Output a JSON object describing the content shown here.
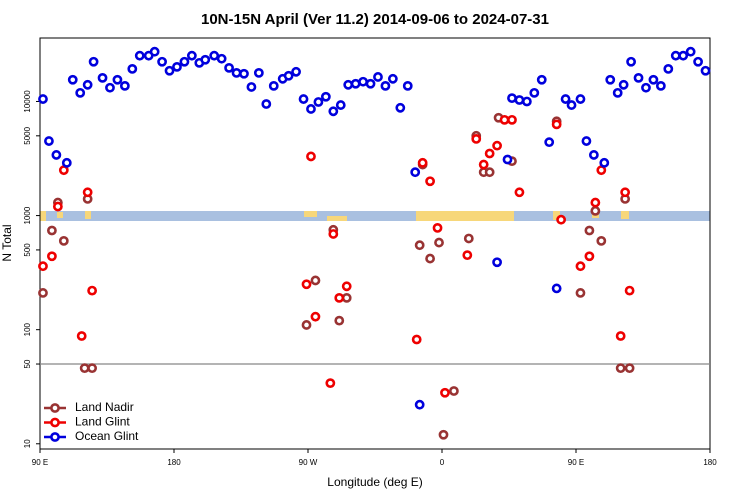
{
  "chart_data": {
    "type": "scatter",
    "title": "10N-15N April (Ver 11.2)   2014-09-06 to 2024-07-31",
    "xlabel": "Longitude (deg E)",
    "ylabel": "N Total",
    "log_y": true,
    "legend": "lower left",
    "reference_line": 50,
    "xlim": [
      90,
      540
    ],
    "ylim": [
      9,
      36000
    ],
    "xticks": [
      {
        "value": 90,
        "label": "90 E"
      },
      {
        "value": 180,
        "label": "180"
      },
      {
        "value": 270,
        "label": "90 W"
      },
      {
        "value": 360,
        "label": "0"
      },
      {
        "value": 450,
        "label": "90 E"
      },
      {
        "value": 540,
        "label": "180"
      }
    ],
    "yticks": [
      10,
      50,
      100,
      500,
      1000,
      5000,
      10000
    ],
    "series": [
      {
        "name": "Land Nadir",
        "color": "#993333",
        "x": [
          92,
          98,
          102,
          106,
          120,
          122,
          125,
          269,
          275,
          287,
          291,
          296,
          345,
          347,
          352,
          358,
          361,
          368,
          378,
          383,
          388,
          392,
          398,
          407,
          437,
          453,
          459,
          463,
          467,
          480,
          483,
          486
        ],
        "values": [
          210,
          740,
          1300,
          600,
          46,
          1400,
          46,
          110,
          270,
          750,
          120,
          190,
          550,
          2800,
          420,
          580,
          12,
          29,
          630,
          5000,
          2400,
          2400,
          7200,
          3000,
          6700,
          210,
          740,
          1100,
          600,
          46,
          1400,
          46
        ]
      },
      {
        "name": "Land Glint",
        "color": "#ee0000",
        "x": [
          92,
          98,
          102,
          106,
          122,
          118,
          125,
          269,
          272,
          275,
          287,
          285,
          291,
          296,
          343,
          347,
          352,
          357,
          362,
          377,
          383,
          388,
          392,
          397,
          402,
          407,
          412,
          437,
          440,
          453,
          459,
          463,
          467,
          483,
          480,
          486
        ],
        "values": [
          360,
          440,
          1200,
          2500,
          1600,
          88,
          220,
          250,
          3300,
          130,
          690,
          34,
          190,
          240,
          82,
          2900,
          2000,
          780,
          28,
          450,
          4700,
          2800,
          3500,
          4100,
          6900,
          6900,
          1600,
          6300,
          920,
          360,
          440,
          1300,
          2500,
          1600,
          88,
          220
        ]
      },
      {
        "name": "Ocean Glint",
        "color": "#0000dd",
        "x": [
          92,
          96,
          101,
          108,
          112,
          117,
          122,
          126,
          132,
          137,
          142,
          147,
          152,
          157,
          163,
          167,
          172,
          177,
          182,
          187,
          192,
          197,
          201,
          207,
          212,
          217,
          222,
          227,
          232,
          237,
          242,
          247,
          253,
          257,
          262,
          267,
          272,
          277,
          282,
          287,
          292,
          297,
          302,
          307,
          312,
          317,
          322,
          327,
          332,
          337,
          342,
          345,
          397,
          404,
          407,
          412,
          417,
          422,
          427,
          432,
          437,
          443,
          447,
          453,
          457,
          462,
          469,
          473,
          478,
          482,
          487,
          492,
          497,
          502,
          507,
          512,
          517,
          522,
          527,
          532,
          537
        ],
        "values": [
          10500,
          4500,
          3400,
          2900,
          15500,
          11900,
          14000,
          22300,
          16100,
          13200,
          15500,
          13700,
          19300,
          25200,
          25200,
          27300,
          22300,
          18600,
          20100,
          22300,
          25200,
          21800,
          23200,
          25200,
          23700,
          19700,
          17800,
          17500,
          13400,
          17800,
          9500,
          13700,
          15800,
          16800,
          18200,
          10500,
          8600,
          9900,
          11000,
          8200,
          9300,
          14000,
          14300,
          14900,
          14300,
          16400,
          13700,
          15800,
          8800,
          13700,
          2400,
          22,
          390,
          3100,
          10700,
          10300,
          10000,
          11900,
          15500,
          4400,
          230,
          10500,
          9300,
          10500,
          4500,
          3400,
          2900,
          15500,
          11900,
          14000,
          22300,
          16100,
          13200,
          15500,
          13700,
          19300,
          25200,
          25200,
          27300,
          22300,
          18600
        ]
      }
    ]
  }
}
